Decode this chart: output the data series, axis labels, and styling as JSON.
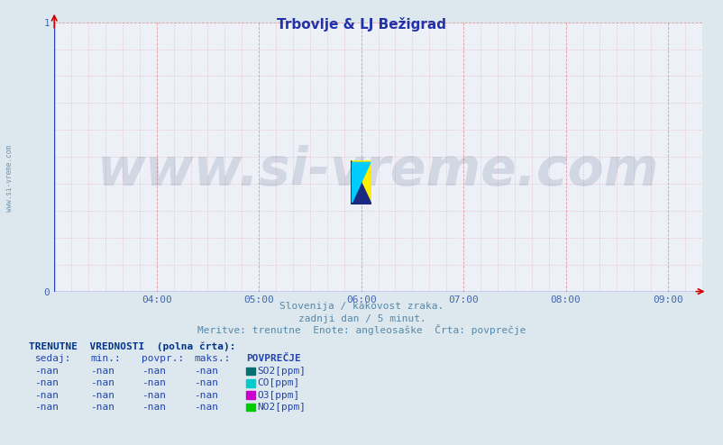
{
  "title": "Trbovlje & LJ Bežigrad",
  "title_color": "#2233aa",
  "title_fontsize": 11,
  "bg_color": "#dde8ee",
  "plot_bg_color": "#eef0f8",
  "axis_color": "#cc0000",
  "grid_color": "#cc4444",
  "grid_alpha": 0.5,
  "ylim": [
    0,
    1
  ],
  "xtick_labels": [
    "04:00",
    "05:00",
    "06:00",
    "07:00",
    "08:00",
    "09:00"
  ],
  "xtick_positions": [
    60,
    120,
    180,
    240,
    300,
    360
  ],
  "ytick_labels": [
    "0",
    "1"
  ],
  "ytick_positions": [
    0,
    1
  ],
  "tick_color": "#4466aa",
  "tick_fontsize": 8,
  "subtitle1": "Slovenija / kakovost zraka.",
  "subtitle2": "zadnji dan / 5 minut.",
  "subtitle3": "Meritve: trenutne  Enote: angleosaške  Črta: povprečje",
  "subtitle_color": "#5588aa",
  "subtitle_fontsize": 8,
  "watermark": "www.si-vreme.com",
  "watermark_color": "#1a3060",
  "watermark_alpha": 0.13,
  "watermark_fontsize": 42,
  "sidewatermark": "www.si-vreme.com",
  "sidewatermark_color": "#5588aa",
  "table_header": "TRENUTNE  VREDNOSTI  (polna črta):",
  "table_cols": [
    "sedaj:",
    "min.:",
    "povpr.:",
    "maks.:",
    "POVPREČJE"
  ],
  "table_rows": [
    [
      "-nan",
      "-nan",
      "-nan",
      "-nan",
      "SO2[ppm]",
      "#007070"
    ],
    [
      "-nan",
      "-nan",
      "-nan",
      "-nan",
      "CO[ppm]",
      "#00cccc"
    ],
    [
      "-nan",
      "-nan",
      "-nan",
      "-nan",
      "O3[ppm]",
      "#cc00cc"
    ],
    [
      "-nan",
      "-nan",
      "-nan",
      "-nan",
      "NO2[ppm]",
      "#00cc00"
    ]
  ],
  "table_color": "#2244aa",
  "table_fontsize": 8,
  "table_header_color": "#003388"
}
